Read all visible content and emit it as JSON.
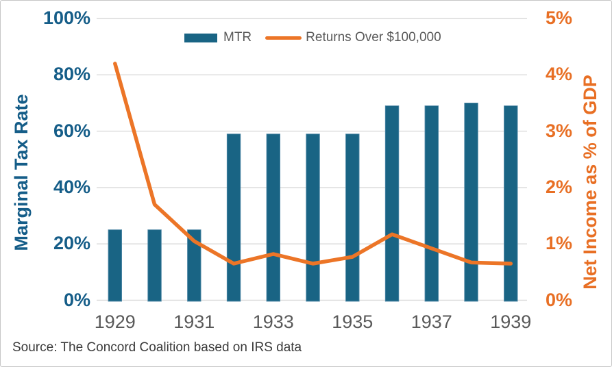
{
  "chart_data": {
    "type": "bar+line dual-axis combo",
    "categories": [
      1929,
      1930,
      1931,
      1932,
      1933,
      1934,
      1935,
      1936,
      1937,
      1938,
      1939
    ],
    "series": [
      {
        "name": "MTR",
        "type": "bar",
        "axis": "left",
        "color": "#196484",
        "values": [
          25,
          25,
          25,
          59,
          59,
          59,
          59,
          69,
          69,
          70,
          69
        ]
      },
      {
        "name": "Returns Over $100,000",
        "type": "line",
        "axis": "right",
        "color": "#EC7527",
        "values": [
          4.2,
          1.7,
          1.05,
          0.65,
          0.82,
          0.65,
          0.77,
          1.17,
          0.92,
          0.67,
          0.65
        ]
      }
    ],
    "left_axis": {
      "title": "Marginal Tax Rate",
      "min": 0,
      "max": 100,
      "tick_step": 20,
      "tick_labels": [
        "0%",
        "20%",
        "40%",
        "60%",
        "80%",
        "100%"
      ],
      "color": "#155D88"
    },
    "right_axis": {
      "title": "Net Income as % of GDP",
      "min": 0,
      "max": 5,
      "tick_step": 1,
      "tick_labels": [
        "0%",
        "1%",
        "2%",
        "3%",
        "4%",
        "5%"
      ],
      "color": "#E86F24"
    },
    "x_axis": {
      "tick_labels": [
        "1929",
        "1931",
        "1933",
        "1935",
        "1937",
        "1939"
      ],
      "first_category": 1929,
      "color": "#595959"
    },
    "grid": true,
    "legend_position": "top-center"
  },
  "source_note": "Source: The Concord Coalition based on IRS data",
  "colors": {
    "gridline": "#DADADA",
    "label_gray": "#595959",
    "source_text": "#3A3A3A",
    "background": "#FFFFFF",
    "border": "#C6C6C6",
    "bar_outline": "#4E87A6"
  }
}
